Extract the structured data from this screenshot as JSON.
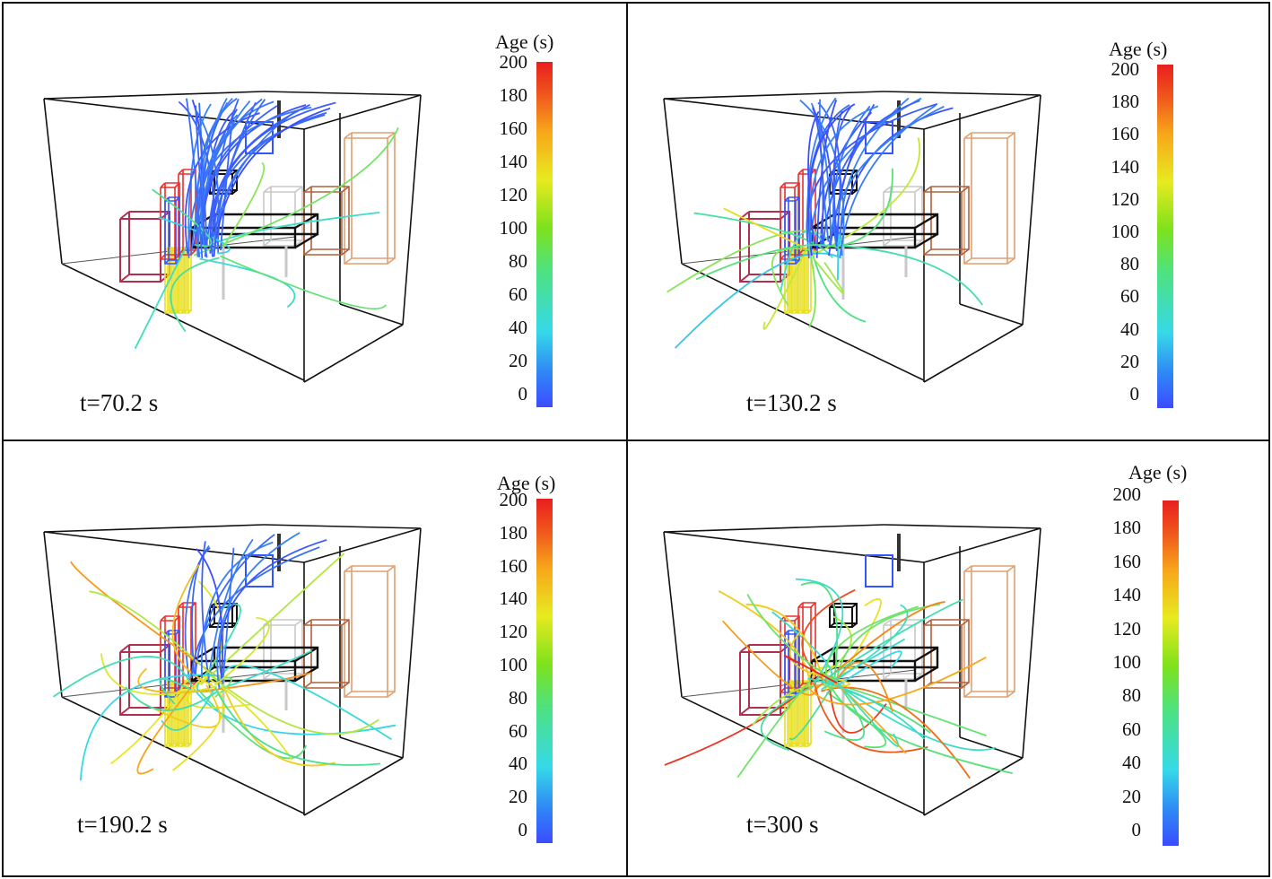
{
  "colorbar": {
    "title": "Age (s)",
    "ticks": [
      "200",
      "180",
      "160",
      "140",
      "120",
      "100",
      "80",
      "60",
      "40",
      "20",
      "0"
    ],
    "min": 0,
    "max": 200,
    "colors": [
      "#3b4cff",
      "#36d9e8",
      "#4fe27c",
      "#e8ea20",
      "#f7a51a",
      "#e81e1e"
    ]
  },
  "panels": [
    {
      "time_label": "t=70.2 s",
      "streamline_spread": 0.15
    },
    {
      "time_label": "t=130.2 s",
      "streamline_spread": 0.45
    },
    {
      "time_label": "t=190.2 s",
      "streamline_spread": 0.7
    },
    {
      "time_label": "t=300 s",
      "streamline_spread": 1.0
    }
  ]
}
